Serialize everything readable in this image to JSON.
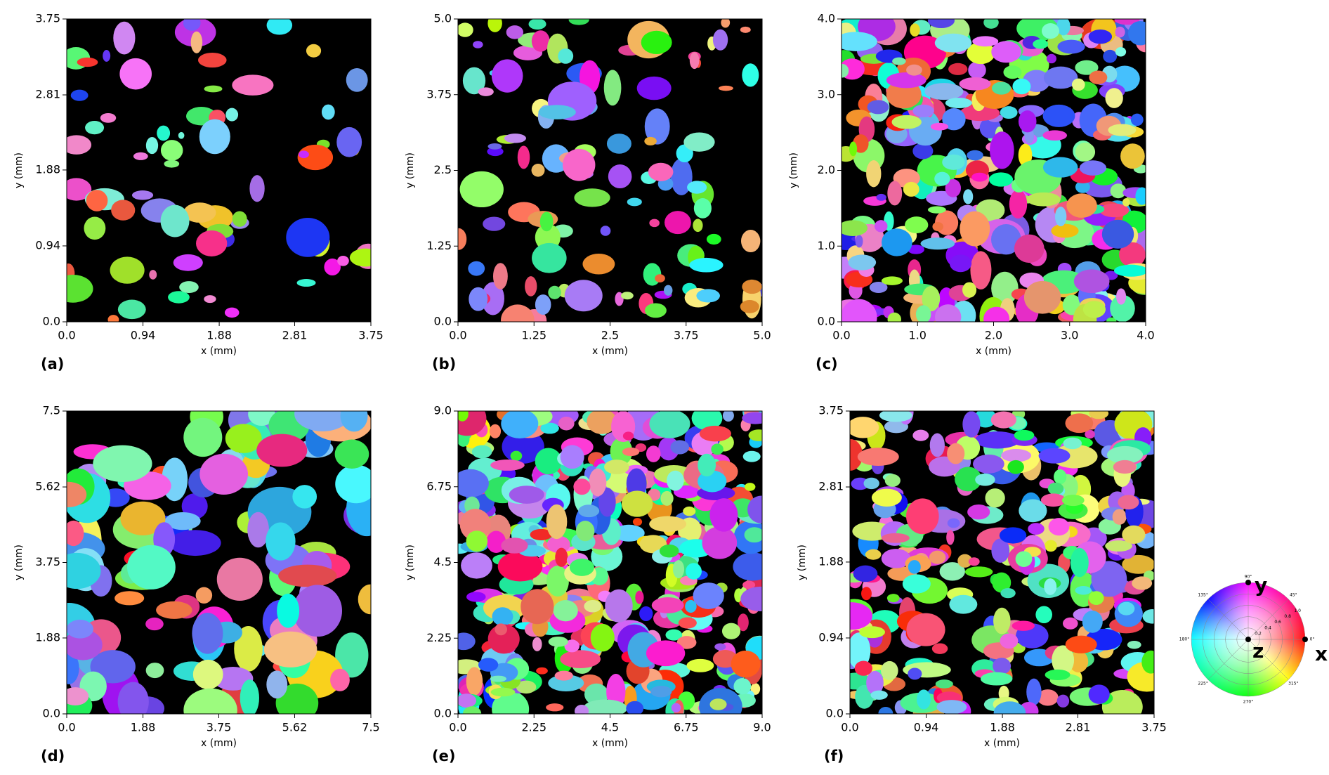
{
  "panels": [
    {
      "label": "(a)",
      "x_label": "x (mm)",
      "y_label": "y (mm)",
      "xlim": [
        0,
        3.75
      ],
      "ylim": [
        0,
        3.75
      ],
      "xticks": [
        {
          "value": 0,
          "label": "0.0"
        },
        0.94,
        1.88,
        2.81,
        3.75
      ],
      "yticks": [
        {
          "value": 0,
          "label": "0.0"
        },
        0.94,
        1.88,
        2.81,
        3.75
      ]
    },
    {
      "label": "(b)",
      "x_label": "x (mm)",
      "y_label": "y (mm)",
      "xlim": [
        0,
        5
      ],
      "ylim": [
        0,
        5
      ],
      "xticks": [
        {
          "value": 0,
          "label": "0.0"
        },
        1.25,
        2.5,
        3.75,
        {
          "value": 5,
          "label": "5.0"
        }
      ],
      "yticks": [
        {
          "value": 0,
          "label": "0.0"
        },
        1.25,
        2.5,
        3.75,
        {
          "value": 5,
          "label": "5.0"
        }
      ]
    },
    {
      "label": "(c)",
      "x_label": "x (mm)",
      "y_label": "y (mm)",
      "xlim": [
        0,
        4
      ],
      "ylim": [
        0,
        4
      ],
      "xticks": [
        {
          "value": 0,
          "label": "0.0"
        },
        {
          "value": 1,
          "label": "1.0"
        },
        {
          "value": 2,
          "label": "2.0"
        },
        {
          "value": 3,
          "label": "3.0"
        },
        {
          "value": 4,
          "label": "4.0"
        }
      ],
      "yticks": [
        {
          "value": 0,
          "label": "0.0"
        },
        {
          "value": 1,
          "label": "1.0"
        },
        {
          "value": 2,
          "label": "2.0"
        },
        {
          "value": 3,
          "label": "3.0"
        },
        {
          "value": 4,
          "label": "4.0"
        }
      ]
    },
    {
      "label": "(d)",
      "x_label": "x (mm)",
      "y_label": "y (mm)",
      "xlim": [
        0,
        7.5
      ],
      "ylim": [
        0,
        7.5
      ],
      "xticks": [
        {
          "value": 0,
          "label": "0.0"
        },
        1.88,
        3.75,
        5.62,
        7.5
      ],
      "yticks": [
        {
          "value": 0,
          "label": "0.0"
        },
        1.88,
        3.75,
        5.62,
        7.5
      ]
    },
    {
      "label": "(e)",
      "x_label": "x (mm)",
      "y_label": "y (mm)",
      "xlim": [
        0,
        9
      ],
      "ylim": [
        0,
        9
      ],
      "xticks": [
        {
          "value": 0,
          "label": "0.0"
        },
        2.25,
        4.5,
        6.75,
        {
          "value": 9,
          "label": "9.0"
        }
      ],
      "yticks": [
        {
          "value": 0,
          "label": "0.0"
        },
        2.25,
        4.5,
        6.75,
        {
          "value": 9,
          "label": "9.0"
        }
      ]
    },
    {
      "label": "(f)",
      "x_label": "x (mm)",
      "y_label": "y (mm)",
      "xlim": [
        0,
        3.75
      ],
      "ylim": [
        0,
        3.75
      ],
      "xticks": [
        {
          "value": 0,
          "label": "0.0"
        },
        0.94,
        1.88,
        2.81,
        3.75
      ],
      "yticks": [
        {
          "value": 0,
          "label": "0.0"
        },
        0.94,
        1.88,
        2.81,
        3.75
      ]
    }
  ],
  "color_key": {
    "axes": [
      "x",
      "y",
      "z"
    ],
    "angle_labels": [
      "0°",
      "45°",
      "90°",
      "135°",
      "180°",
      "225°",
      "270°",
      "315°"
    ],
    "radial_labels": [
      "0.2",
      "0.4",
      "0.6",
      "0.8",
      "1.0"
    ]
  }
}
